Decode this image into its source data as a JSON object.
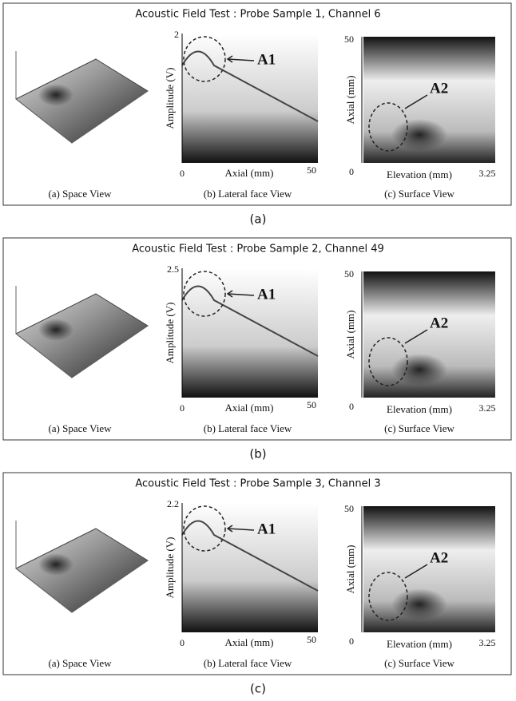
{
  "panels": [
    {
      "title": "Acoustic Field Test : Probe Sample 1, Channel 6",
      "space": {
        "caption": "(a) Space View"
      },
      "lateral": {
        "y_top": 2,
        "y_bottom": 0,
        "x_right": 50,
        "y_label": "Amplitude (V)",
        "x_label": "Axial (mm)",
        "annotation": "A1",
        "caption": "(b) Lateral face View"
      },
      "surface": {
        "y_top": 50,
        "y_bottom": 0,
        "x_right": 3.25,
        "y_label": "Axial (mm)",
        "x_label": "Elevation (mm)",
        "annotation": "A2",
        "caption": "(c) Surface View"
      },
      "label": "(a)"
    },
    {
      "title": "Acoustic Field Test : Probe Sample 2, Channel 49",
      "space": {
        "caption": "(a) Space View"
      },
      "lateral": {
        "y_top": 2.5,
        "y_bottom": 0,
        "x_right": 50,
        "y_label": "Amplitude (V)",
        "x_label": "Axial (mm)",
        "annotation": "A1",
        "caption": "(b) Lateral face View"
      },
      "surface": {
        "y_top": 50,
        "y_bottom": 0,
        "x_right": 3.25,
        "y_label": "Axial (mm)",
        "x_label": "Elevation (mm)",
        "annotation": "A2",
        "caption": "(c) Surface View"
      },
      "label": "(b)"
    },
    {
      "title": "Acoustic Field Test : Probe Sample 3, Channel 3",
      "space": {
        "caption": "(a) Space View"
      },
      "lateral": {
        "y_top": 2.2,
        "y_bottom": 0,
        "x_right": 50,
        "y_label": "Amplitude (V)",
        "x_label": "Axial (mm)",
        "annotation": "A1",
        "caption": "(b) Lateral face View"
      },
      "surface": {
        "y_top": 50,
        "y_bottom": 0,
        "x_right": 3.25,
        "y_label": "Axial (mm)",
        "x_label": "Elevation (mm)",
        "annotation": "A2",
        "caption": "(c) Surface View"
      },
      "label": "(c)"
    }
  ]
}
